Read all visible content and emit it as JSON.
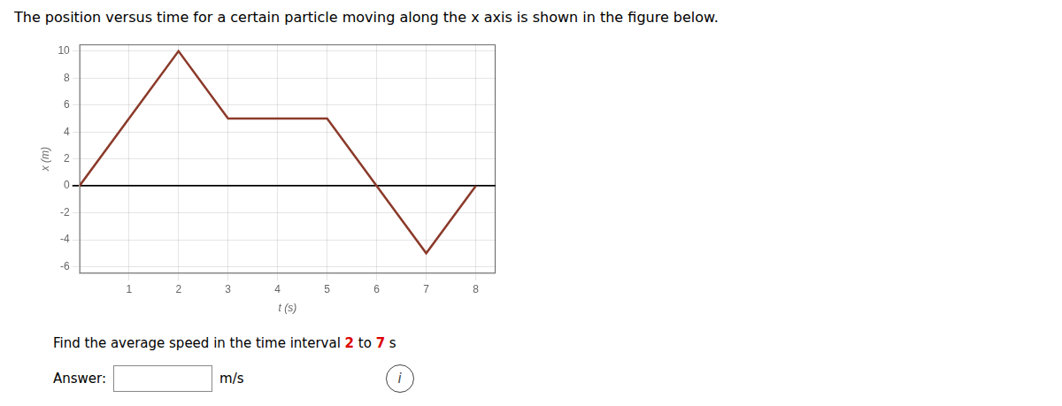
{
  "chart_data": {
    "type": "line",
    "title": "The position versus time for a certain particle moving along the x axis is shown in the figure below.",
    "x_label": "t (s)",
    "y_label": "x (m)",
    "x": [
      0,
      2,
      3,
      5,
      6,
      7,
      8
    ],
    "values": [
      0,
      10,
      5,
      5,
      0,
      -5,
      0
    ],
    "color": "#8B3A2A",
    "xlim": [
      0,
      8.4
    ],
    "ylim": [
      -6.5,
      10.5
    ],
    "xticks": [
      1,
      2,
      3,
      4,
      5,
      6,
      7,
      8
    ],
    "yticks": [
      -6,
      -4,
      -2,
      0,
      2,
      4,
      6,
      8,
      10
    ],
    "grid": true,
    "annotations": [
      [
        {
          "text": "Find the average speed in the time interval "
        },
        {
          "text": "2",
          "color": "#DD0000"
        },
        {
          "text": " to "
        },
        {
          "text": "7",
          "color": "#DD0000"
        },
        {
          "text": " s"
        }
      ],
      [
        {
          "text": "Answer:"
        },
        {
          "text": "m/s"
        },
        {
          "text": "i"
        }
      ]
    ]
  }
}
